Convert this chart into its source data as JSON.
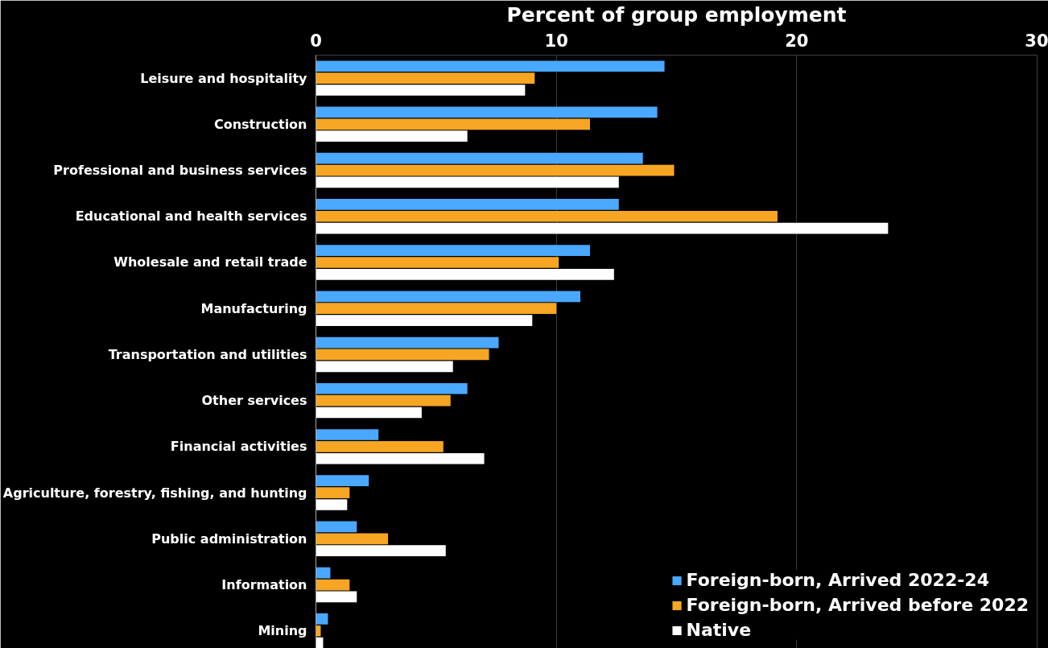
{
  "chart_data": {
    "type": "bar",
    "orientation": "horizontal",
    "xlabel": "Percent of group employment",
    "categories": [
      "Leisure and hospitality",
      "Construction",
      "Professional and business services",
      "Educational and health services",
      "Wholesale and retail trade",
      "Manufacturing",
      "Transportation and utilities",
      "Other services",
      "Financial activities",
      "Agriculture, forestry, fishing, and hunting",
      "Public administration",
      "Information",
      "Mining"
    ],
    "series": [
      {
        "name": "Foreign-born, Arrived 2022-24",
        "color": "#4aa8ff",
        "values": [
          14.5,
          14.2,
          13.6,
          12.6,
          11.4,
          11.0,
          7.6,
          6.3,
          2.6,
          2.2,
          1.7,
          0.6,
          0.5
        ]
      },
      {
        "name": "Foreign-born, Arrived before 2022",
        "color": "#f6a623",
        "values": [
          9.1,
          11.4,
          14.9,
          19.2,
          10.1,
          10.0,
          7.2,
          5.6,
          5.3,
          1.4,
          3.0,
          1.4,
          0.2
        ]
      },
      {
        "name": "Native",
        "color": "#ffffff",
        "values": [
          8.7,
          6.3,
          12.6,
          23.8,
          12.4,
          9.0,
          5.7,
          4.4,
          7.0,
          1.3,
          5.4,
          1.7,
          0.3
        ]
      }
    ],
    "xlim": [
      0,
      30
    ],
    "xticks": [
      0,
      10,
      20,
      30
    ],
    "grid": "x",
    "legend": "bottom right"
  }
}
